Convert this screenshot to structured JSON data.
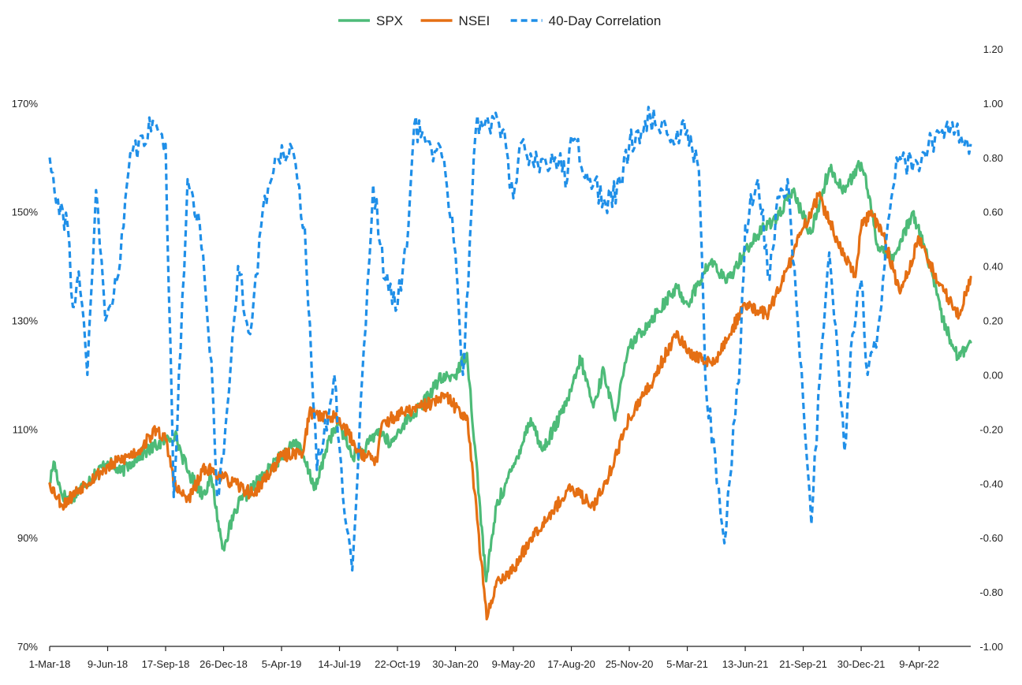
{
  "chart_data": {
    "type": "line",
    "title": "",
    "xlabel": "",
    "ylabel": "",
    "y2label": "",
    "legend_position": "top-center",
    "grid": false,
    "x_tick_labels": [
      "1-Mar-18",
      "9-Jun-18",
      "17-Sep-18",
      "26-Dec-18",
      "5-Apr-19",
      "14-Jul-19",
      "22-Oct-19",
      "30-Jan-20",
      "9-May-20",
      "17-Aug-20",
      "25-Nov-20",
      "5-Mar-21",
      "13-Jun-21",
      "21-Sep-21",
      "30-Dec-21",
      "9-Apr-22"
    ],
    "x_ticks": [
      "2018-03-01",
      "2018-06-09",
      "2018-09-17",
      "2018-12-26",
      "2019-04-05",
      "2019-07-14",
      "2019-10-22",
      "2020-01-30",
      "2020-05-09",
      "2020-08-17",
      "2020-11-25",
      "2021-03-05",
      "2021-06-13",
      "2021-09-21",
      "2021-12-30",
      "2022-04-09"
    ],
    "x_range": [
      "2018-03-01",
      "2022-07-07"
    ],
    "left_axis": {
      "ylim": [
        70,
        180
      ],
      "ticks": [
        70,
        90,
        110,
        130,
        150,
        170
      ],
      "tick_labels": [
        "70%",
        "90%",
        "110%",
        "130%",
        "150%",
        "170%"
      ]
    },
    "right_axis": {
      "ylim": [
        -1.0,
        1.2
      ],
      "ticks": [
        -1.0,
        -0.8,
        -0.6,
        -0.4,
        -0.2,
        0.0,
        0.2,
        0.4,
        0.6,
        0.8,
        1.0,
        1.2
      ],
      "tick_labels": [
        "-1.00",
        "-0.80",
        "-0.60",
        "-0.40",
        "-0.20",
        "0.00",
        "0.20",
        "0.40",
        "0.60",
        "0.80",
        "1.00",
        "1.20"
      ]
    },
    "series": [
      {
        "name": "SPX",
        "axis": "left",
        "color": "#4dbb78",
        "style": "solid",
        "points": [
          [
            "2018-03-01",
            100
          ],
          [
            "2018-03-08",
            104
          ],
          [
            "2018-03-22",
            98
          ],
          [
            "2018-04-05",
            97
          ],
          [
            "2018-05-01",
            100
          ],
          [
            "2018-06-09",
            104
          ],
          [
            "2018-07-01",
            102
          ],
          [
            "2018-08-01",
            105
          ],
          [
            "2018-09-17",
            108
          ],
          [
            "2018-10-03",
            109
          ],
          [
            "2018-10-26",
            102
          ],
          [
            "2018-11-20",
            98
          ],
          [
            "2018-12-05",
            101
          ],
          [
            "2018-12-24",
            88
          ],
          [
            "2019-01-20",
            96
          ],
          [
            "2019-02-20",
            100
          ],
          [
            "2019-04-05",
            105
          ],
          [
            "2019-04-30",
            108
          ],
          [
            "2019-05-15",
            104
          ],
          [
            "2019-06-03",
            99
          ],
          [
            "2019-06-25",
            108
          ],
          [
            "2019-07-14",
            111
          ],
          [
            "2019-08-05",
            105
          ],
          [
            "2019-08-25",
            106
          ],
          [
            "2019-09-20",
            110
          ],
          [
            "2019-10-10",
            107
          ],
          [
            "2019-11-01",
            111
          ],
          [
            "2019-12-01",
            114
          ],
          [
            "2020-01-01",
            119
          ],
          [
            "2020-01-30",
            120
          ],
          [
            "2020-02-19",
            124
          ],
          [
            "2020-03-23",
            82
          ],
          [
            "2020-04-10",
            96
          ],
          [
            "2020-05-09",
            103
          ],
          [
            "2020-06-08",
            112
          ],
          [
            "2020-06-28",
            106
          ],
          [
            "2020-08-01",
            113
          ],
          [
            "2020-08-17",
            117
          ],
          [
            "2020-09-02",
            123
          ],
          [
            "2020-09-24",
            114
          ],
          [
            "2020-10-12",
            121
          ],
          [
            "2020-10-30",
            112
          ],
          [
            "2020-11-25",
            125
          ],
          [
            "2020-12-31",
            130
          ],
          [
            "2021-02-15",
            136
          ],
          [
            "2021-03-05",
            133
          ],
          [
            "2021-04-15",
            141
          ],
          [
            "2021-05-12",
            137
          ],
          [
            "2021-06-13",
            143
          ],
          [
            "2021-07-15",
            147
          ],
          [
            "2021-08-15",
            150
          ],
          [
            "2021-09-02",
            154
          ],
          [
            "2021-10-04",
            146
          ],
          [
            "2021-11-05",
            158
          ],
          [
            "2021-12-01",
            154
          ],
          [
            "2021-12-30",
            159
          ],
          [
            "2022-01-10",
            154
          ],
          [
            "2022-01-27",
            144
          ],
          [
            "2022-02-23",
            141
          ],
          [
            "2022-03-29",
            150
          ],
          [
            "2022-04-20",
            143
          ],
          [
            "2022-05-20",
            130
          ],
          [
            "2022-06-16",
            123
          ],
          [
            "2022-07-07",
            126
          ]
        ]
      },
      {
        "name": "NSEI",
        "axis": "left",
        "color": "#e56f13",
        "style": "solid",
        "points": [
          [
            "2018-03-01",
            100
          ],
          [
            "2018-03-23",
            96
          ],
          [
            "2018-05-01",
            100
          ],
          [
            "2018-06-09",
            103
          ],
          [
            "2018-08-01",
            106
          ],
          [
            "2018-09-01",
            110
          ],
          [
            "2018-09-17",
            108
          ],
          [
            "2018-10-05",
            99
          ],
          [
            "2018-10-26",
            97
          ],
          [
            "2018-11-25",
            103
          ],
          [
            "2018-12-26",
            101
          ],
          [
            "2019-02-15",
            98
          ],
          [
            "2019-04-05",
            105
          ],
          [
            "2019-05-13",
            106
          ],
          [
            "2019-05-23",
            113
          ],
          [
            "2019-07-14",
            112
          ],
          [
            "2019-08-15",
            106
          ],
          [
            "2019-09-17",
            104
          ],
          [
            "2019-09-25",
            111
          ],
          [
            "2019-11-01",
            113
          ],
          [
            "2019-12-01",
            114
          ],
          [
            "2020-01-15",
            116
          ],
          [
            "2020-01-30",
            114
          ],
          [
            "2020-02-20",
            112
          ],
          [
            "2020-03-24",
            75
          ],
          [
            "2020-04-10",
            82
          ],
          [
            "2020-05-09",
            84
          ],
          [
            "2020-06-08",
            90
          ],
          [
            "2020-07-15",
            95
          ],
          [
            "2020-08-17",
            99
          ],
          [
            "2020-09-24",
            96
          ],
          [
            "2020-10-15",
            100
          ],
          [
            "2020-11-25",
            112
          ],
          [
            "2020-12-31",
            118
          ],
          [
            "2021-02-15",
            128
          ],
          [
            "2021-03-05",
            124
          ],
          [
            "2021-04-20",
            122
          ],
          [
            "2021-06-13",
            133
          ],
          [
            "2021-07-20",
            131
          ],
          [
            "2021-08-15",
            137
          ],
          [
            "2021-09-21",
            147
          ],
          [
            "2021-10-18",
            153
          ],
          [
            "2021-11-25",
            143
          ],
          [
            "2021-12-20",
            138
          ],
          [
            "2021-12-30",
            147
          ],
          [
            "2022-01-15",
            150
          ],
          [
            "2022-02-05",
            146
          ],
          [
            "2022-03-07",
            135
          ],
          [
            "2022-04-09",
            145
          ],
          [
            "2022-05-12",
            137
          ],
          [
            "2022-06-17",
            131
          ],
          [
            "2022-07-07",
            138
          ]
        ]
      },
      {
        "name": "40-Day Correlation",
        "axis": "right",
        "color": "#1f8fe8",
        "style": "dashed",
        "points": [
          [
            "2018-03-01",
            0.8
          ],
          [
            "2018-03-15",
            0.65
          ],
          [
            "2018-04-01",
            0.55
          ],
          [
            "2018-04-10",
            0.25
          ],
          [
            "2018-04-20",
            0.38
          ],
          [
            "2018-05-05",
            0.0
          ],
          [
            "2018-05-20",
            0.68
          ],
          [
            "2018-06-05",
            0.2
          ],
          [
            "2018-06-25",
            0.35
          ],
          [
            "2018-07-15",
            0.75
          ],
          [
            "2018-08-05",
            0.88
          ],
          [
            "2018-09-01",
            0.92
          ],
          [
            "2018-09-17",
            0.85
          ],
          [
            "2018-10-01",
            -0.45
          ],
          [
            "2018-10-25",
            0.72
          ],
          [
            "2018-11-15",
            0.55
          ],
          [
            "2018-12-05",
            0.05
          ],
          [
            "2018-12-15",
            -0.45
          ],
          [
            "2018-12-26",
            -0.3
          ],
          [
            "2019-01-20",
            0.4
          ],
          [
            "2019-02-10",
            0.15
          ],
          [
            "2019-03-01",
            0.55
          ],
          [
            "2019-03-25",
            0.8
          ],
          [
            "2019-04-20",
            0.85
          ],
          [
            "2019-05-15",
            0.55
          ],
          [
            "2019-06-05",
            -0.35
          ],
          [
            "2019-06-25",
            -0.15
          ],
          [
            "2019-07-05",
            0.0
          ],
          [
            "2019-07-20",
            -0.45
          ],
          [
            "2019-08-05",
            -0.72
          ],
          [
            "2019-08-25",
            0.1
          ],
          [
            "2019-09-10",
            0.7
          ],
          [
            "2019-10-01",
            0.35
          ],
          [
            "2019-10-22",
            0.25
          ],
          [
            "2019-11-10",
            0.55
          ],
          [
            "2019-11-20",
            0.92
          ],
          [
            "2019-12-10",
            0.85
          ],
          [
            "2020-01-10",
            0.8
          ],
          [
            "2020-01-30",
            0.45
          ],
          [
            "2020-02-12",
            0.0
          ],
          [
            "2020-02-24",
            0.5
          ],
          [
            "2020-03-05",
            0.9
          ],
          [
            "2020-03-25",
            0.95
          ],
          [
            "2020-04-20",
            0.9
          ],
          [
            "2020-05-09",
            0.65
          ],
          [
            "2020-05-20",
            0.85
          ],
          [
            "2020-06-20",
            0.78
          ],
          [
            "2020-07-20",
            0.8
          ],
          [
            "2020-08-10",
            0.72
          ],
          [
            "2020-08-17",
            0.88
          ],
          [
            "2020-09-24",
            0.7
          ],
          [
            "2020-10-15",
            0.63
          ],
          [
            "2020-11-10",
            0.7
          ],
          [
            "2020-11-25",
            0.85
          ],
          [
            "2020-12-31",
            0.95
          ],
          [
            "2021-02-01",
            0.88
          ],
          [
            "2021-03-05",
            0.9
          ],
          [
            "2021-03-25",
            0.75
          ],
          [
            "2021-04-05",
            0.0
          ],
          [
            "2021-04-25",
            -0.4
          ],
          [
            "2021-05-08",
            -0.62
          ],
          [
            "2021-06-05",
            0.1
          ],
          [
            "2021-06-13",
            0.55
          ],
          [
            "2021-07-05",
            0.72
          ],
          [
            "2021-07-25",
            0.35
          ],
          [
            "2021-08-05",
            0.6
          ],
          [
            "2021-08-25",
            0.72
          ],
          [
            "2021-09-21",
            -0.1
          ],
          [
            "2021-10-05",
            -0.55
          ],
          [
            "2021-10-20",
            0.0
          ],
          [
            "2021-11-05",
            0.45
          ],
          [
            "2021-11-25",
            -0.1
          ],
          [
            "2021-12-01",
            -0.28
          ],
          [
            "2021-12-15",
            0.15
          ],
          [
            "2021-12-30",
            0.35
          ],
          [
            "2022-01-10",
            0.0
          ],
          [
            "2022-01-25",
            0.1
          ],
          [
            "2022-02-20",
            0.65
          ],
          [
            "2022-03-01",
            0.8
          ],
          [
            "2022-04-09",
            0.75
          ],
          [
            "2022-05-10",
            0.9
          ],
          [
            "2022-06-20",
            0.88
          ],
          [
            "2022-07-07",
            0.85
          ]
        ]
      }
    ]
  }
}
